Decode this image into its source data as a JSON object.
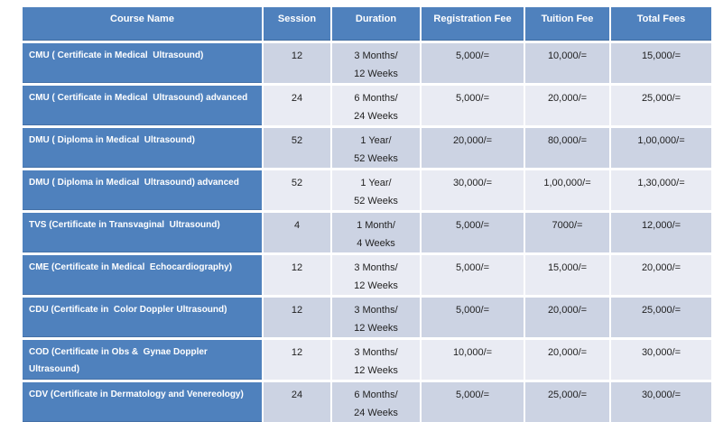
{
  "table": {
    "columns": [
      {
        "key": "course",
        "label": "Course Name"
      },
      {
        "key": "session",
        "label": "Session"
      },
      {
        "key": "duration",
        "label": "Duration"
      },
      {
        "key": "registration",
        "label": "Registration Fee"
      },
      {
        "key": "tuition",
        "label": "Tuition Fee"
      },
      {
        "key": "total",
        "label": "Total Fees"
      }
    ],
    "rows": [
      {
        "course": "CMU ( Certificate in Medical  Ultrasound)",
        "session": "12",
        "duration": "3 Months/\n12 Weeks",
        "registration": "5,000/=",
        "tuition": "10,000/=",
        "total": "15,000/="
      },
      {
        "course": "CMU ( Certificate in Medical  Ultrasound) advanced",
        "session": "24",
        "duration": "6 Months/\n24 Weeks",
        "registration": "5,000/=",
        "tuition": "20,000/=",
        "total": "25,000/="
      },
      {
        "course": "DMU ( Diploma in Medical  Ultrasound)",
        "session": "52",
        "duration": "1 Year/\n52 Weeks",
        "registration": "20,000/=",
        "tuition": "80,000/=",
        "total": "1,00,000/="
      },
      {
        "course": "DMU ( Diploma in Medical  Ultrasound) advanced",
        "session": "52",
        "duration": "1 Year/\n52 Weeks",
        "registration": "30,000/=",
        "tuition": "1,00,000/=",
        "total": "1,30,000/="
      },
      {
        "course": "TVS (Certificate in Transvaginal  Ultrasound)",
        "session": "4",
        "duration": "1 Month/\n4 Weeks",
        "registration": "5,000/=",
        "tuition": "7000/=",
        "total": "12,000/="
      },
      {
        "course": "CME (Certificate in Medical  Echocardiography)",
        "session": "12",
        "duration": "3 Months/\n12 Weeks",
        "registration": "5,000/=",
        "tuition": "15,000/=",
        "total": "20,000/="
      },
      {
        "course": "CDU (Certificate in  Color Doppler Ultrasound)",
        "session": "12",
        "duration": "3 Months/\n12 Weeks",
        "registration": "5,000/=",
        "tuition": "20,000/=",
        "total": "25,000/="
      },
      {
        "course": "COD (Certificate in Obs &  Gynae Doppler Ultrasound)",
        "session": "12",
        "duration": "3 Months/\n12 Weeks",
        "registration": "10,000/=",
        "tuition": "20,000/=",
        "total": "30,000/="
      },
      {
        "course": "CDV (Certificate in Dermatology and Venereology)",
        "session": "24",
        "duration": "6 Months/\n24 Weeks",
        "registration": "5,000/=",
        "tuition": "25,000/=",
        "total": "30,000/="
      }
    ],
    "colors": {
      "header_bg": "#4f81bd",
      "course_bg": "#4f81bd",
      "band_dark": "#ccd3e3",
      "band_light": "#e9ebf3",
      "header_text": "#ffffff",
      "course_text": "#ffffff",
      "data_text": "#1f1f1f",
      "grid_border": "#ffffff"
    }
  }
}
